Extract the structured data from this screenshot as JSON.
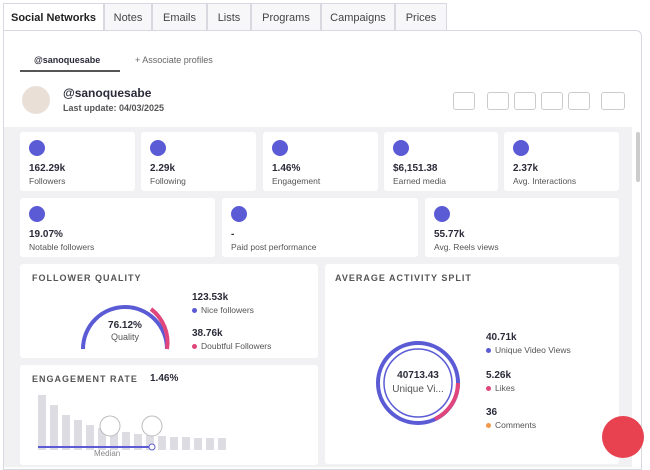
{
  "tabs": [
    "Social Networks",
    "Notes",
    "Emails",
    "Lists",
    "Programs",
    "Campaigns",
    "Prices"
  ],
  "subtabs": [
    "@sanoquesabe",
    "Associate profiles"
  ],
  "profile": {
    "handle": "@sanoquesabe",
    "last_update": "Last update: 04/03/2025"
  },
  "stats": [
    {
      "value": "162.29k",
      "label": "Followers"
    },
    {
      "value": "2.29k",
      "label": "Following"
    },
    {
      "value": "1.46%",
      "label": "Engagement"
    },
    {
      "value": "$6,151.38",
      "label": "Earned media"
    },
    {
      "value": "2.37k",
      "label": "Avg. Interactions"
    },
    {
      "value": "19.07%",
      "label": "Notable followers"
    },
    {
      "value": "-",
      "label": "Paid post performance"
    },
    {
      "value": "55.77k",
      "label": "Avg. Reels views"
    }
  ],
  "follower_quality": {
    "title": "FOLLOWER QUALITY",
    "center_value": "76.12%",
    "center_label": "Quality",
    "items": [
      {
        "value": "123.53k",
        "label": "Nice followers"
      },
      {
        "value": "38.76k",
        "label": "Doubtful Followers"
      }
    ]
  },
  "engagement_rate": {
    "title": "ENGAGEMENT RATE",
    "value": "1.46%",
    "median": "Median"
  },
  "activity_split": {
    "title": "AVERAGE ACTIVITY SPLIT",
    "center_value": "40713.43",
    "center_label": "Unique Vi...",
    "items": [
      {
        "value": "40.71k",
        "label": "Unique Video Views"
      },
      {
        "value": "5.26k",
        "label": "Likes"
      },
      {
        "value": "36",
        "label": "Comments"
      }
    ]
  }
}
